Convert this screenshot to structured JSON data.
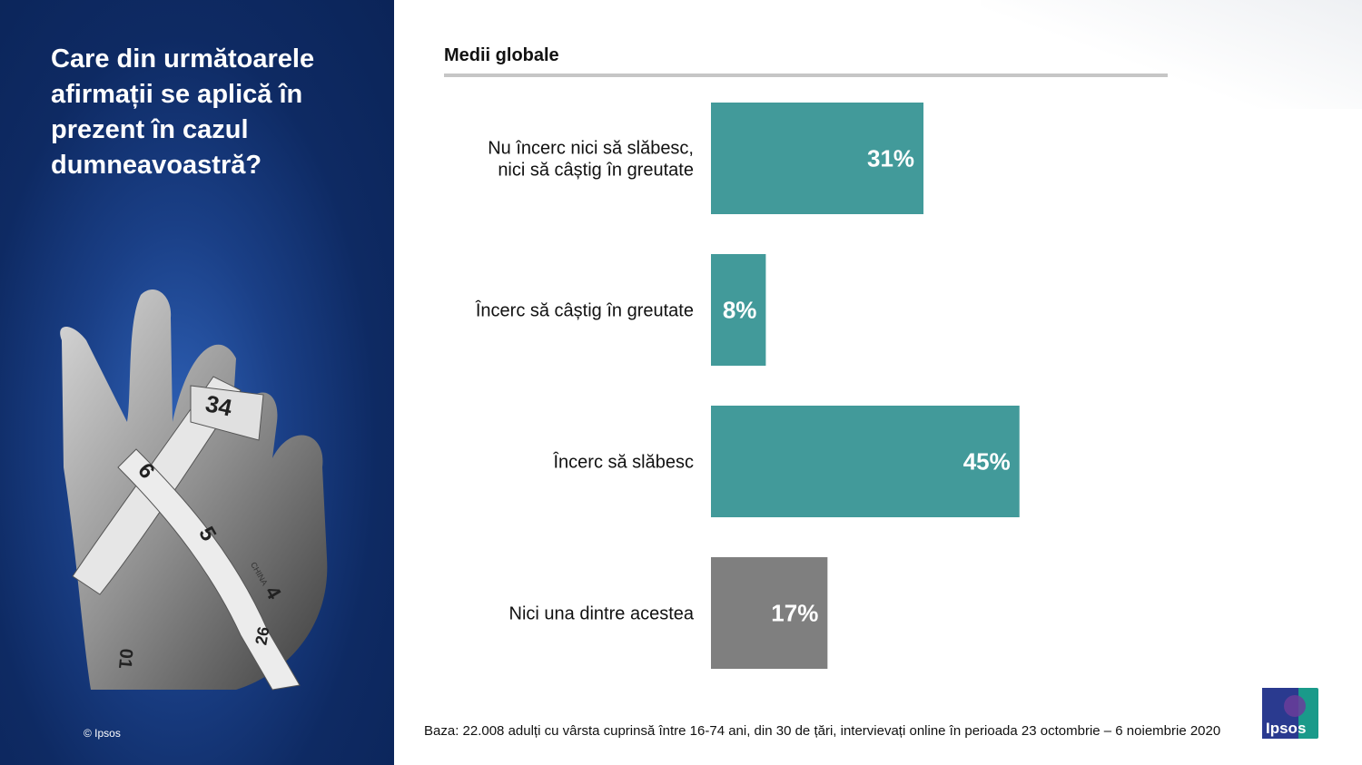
{
  "question": "Care din următoarele\nafirmații se aplică în\nprezent în cazul\ndumneavoastră?",
  "copyright": "© Ipsos",
  "footnote": "Baza: 22.008 adulți cu vârsta cuprinsă între 16-74 ani, din 30 de țări, intervievați online în perioada 23 octombrie – 6 noiembrie 2020",
  "logo": {
    "text": "Ipsos"
  },
  "hand_image": {
    "tape_numbers": [
      "34",
      "6",
      "5",
      "4",
      "26",
      "01"
    ],
    "tape_text": "CHINA"
  },
  "colors": {
    "teal": "#429a9a",
    "grey": "#7f7f7f",
    "panel": "#0e2a63"
  },
  "chart_data": {
    "type": "bar",
    "orientation": "horizontal",
    "title": "Medii globale",
    "categories": [
      [
        "Nu încerc nici să slăbesc,",
        "nici să câștig în greutate"
      ],
      [
        "Încerc să câștig în greutate"
      ],
      [
        "Încerc să slăbesc"
      ],
      [
        "Nici una dintre acestea"
      ]
    ],
    "values": [
      31,
      8,
      45,
      17
    ],
    "value_labels": [
      "31%",
      "8%",
      "45%",
      "17%"
    ],
    "bar_colors": [
      "#429a9a",
      "#429a9a",
      "#429a9a",
      "#7f7f7f"
    ],
    "xlim": [
      0,
      100
    ],
    "unit": "%"
  }
}
